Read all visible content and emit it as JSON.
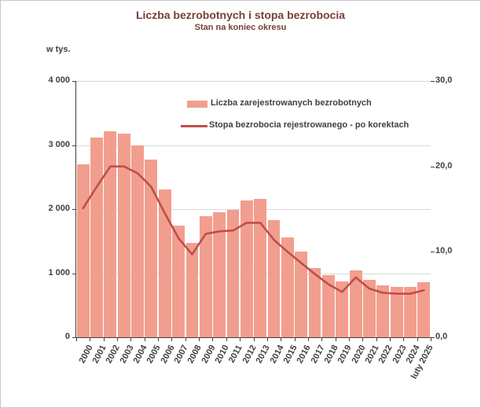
{
  "page": {
    "title": "Liczba bezrobotnych i stopa bezrobocia",
    "subtitle": "Stan na koniec okresu",
    "unit_label": "w tys."
  },
  "legend": {
    "bars": "Liczba zarejestrowanych bezrobotnych",
    "line": "Stopa bezrobocia rejestrowanego - po korektach"
  },
  "colors": {
    "bar_fill": "#F29E8E",
    "line_stroke": "#BE4F4B",
    "title_text": "#774038",
    "axis_text": "#404040",
    "gridline": "#D9D9D9",
    "axis_line": "#3F3F3F"
  },
  "chart_data": {
    "type": "bar",
    "subtype": "bar-line-combo",
    "title": "Liczba bezrobotnych i stopa bezrobocia",
    "subtitle": "Stan na koniec okresu",
    "categories": [
      "2000",
      "2001",
      "2002",
      "2003",
      "2004",
      "2005",
      "2006",
      "2007",
      "2008",
      "2009",
      "2010",
      "2011",
      "2012",
      "2013",
      "2014",
      "2015",
      "2016",
      "2017",
      "2018",
      "2019",
      "2020",
      "2021",
      "2022",
      "2023",
      "2024",
      "luty 2025"
    ],
    "series": [
      {
        "name": "Liczba zarejestrowanych bezrobotnych",
        "type": "bar",
        "axis": "left",
        "unit": "tys.",
        "values": [
          2703,
          3115,
          3217,
          3176,
          3000,
          2773,
          2309,
          1747,
          1474,
          1893,
          1955,
          1983,
          2137,
          2158,
          1825,
          1563,
          1335,
          1082,
          969,
          866,
          1046,
          895,
          812,
          788,
          785,
          854
        ]
      },
      {
        "name": "Stopa bezrobocia rejestrowanego - po korektach",
        "type": "line",
        "axis": "right",
        "unit": "%",
        "values": [
          15.1,
          17.6,
          20.0,
          20.0,
          19.2,
          17.6,
          14.5,
          11.6,
          9.7,
          12.1,
          12.4,
          12.5,
          13.4,
          13.4,
          11.4,
          10.0,
          8.7,
          7.4,
          6.2,
          5.3,
          7.0,
          5.7,
          5.2,
          5.1,
          5.1,
          5.5
        ]
      }
    ],
    "left_axis": {
      "label": "w tys.",
      "min": 0,
      "max": 4000,
      "tick_values": [
        0,
        1000,
        2000,
        3000,
        4000
      ],
      "tick_labels": [
        "0",
        "1 000",
        "2 000",
        "3 000",
        "4 000"
      ]
    },
    "right_axis": {
      "min": 0,
      "max": 30,
      "tick_values": [
        0,
        10,
        20,
        30
      ],
      "tick_labels": [
        "0,0",
        "10,0",
        "20,0",
        "30,0"
      ]
    },
    "grid": true,
    "legend_position": "top-inside"
  }
}
